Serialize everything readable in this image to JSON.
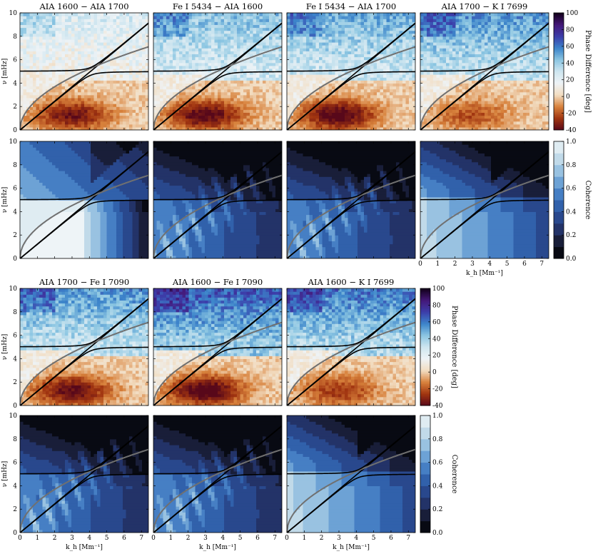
{
  "colors": {
    "phase_stops": [
      "#58081a",
      "#a03410",
      "#d8823c",
      "#f2dcc0",
      "#eef3f6",
      "#cfe6f0",
      "#8cc6e2",
      "#3c84ca",
      "#3c3eaa",
      "#451878",
      "#12001a"
    ],
    "coh_stops": [
      "#000000",
      "#181c36",
      "#273a78",
      "#2c5aa6",
      "#4a86c9",
      "#8ab9de",
      "#c4dcea",
      "#eef4f7"
    ],
    "ridge_lines": "#000000",
    "lamb_line": "#707070"
  },
  "chart_data": [
    {
      "type": "heatmap",
      "block": "top",
      "titles": [
        "AIA 1600 − AIA 1700",
        "Fe I 5434 − AIA 1600",
        "Fe I 5434 − AIA 1700",
        "AIA 1700 − K I 7699"
      ],
      "phase_rows": {
        "quantity": "Phase Difference",
        "xlim": [
          0,
          7.4
        ],
        "ylim": [
          0,
          10
        ],
        "clim": [
          -40,
          100
        ]
      },
      "coherence_rows": {
        "quantity": "Coherence",
        "xlim": [
          0,
          7.4
        ],
        "ylim": [
          0,
          10
        ],
        "clim": [
          0,
          1
        ]
      }
    },
    {
      "type": "heatmap",
      "block": "bottom",
      "titles": [
        "AIA 1700 − Fe I 7090",
        "AIA 1600 − Fe I 7090",
        "AIA 1600 − K I 7699"
      ],
      "phase_rows": {
        "quantity": "Phase Difference",
        "xlim": [
          0,
          7.4
        ],
        "ylim": [
          0,
          10
        ],
        "clim": [
          -40,
          100
        ]
      },
      "coherence_rows": {
        "quantity": "Coherence",
        "xlim": [
          0,
          7.4
        ],
        "ylim": [
          0,
          10
        ],
        "clim": [
          0,
          1
        ]
      }
    }
  ],
  "axes": {
    "ylabel": "ν [mHz]",
    "xlabel": "k_h [Mm⁻¹]",
    "xticks": [
      0,
      1,
      2,
      3,
      4,
      5,
      6,
      7
    ],
    "yticks": [
      0,
      2,
      4,
      6,
      8,
      10
    ]
  },
  "colorbars": {
    "phase": {
      "label": "Phase Difference [deg]",
      "ticks": [
        -40,
        -20,
        0,
        20,
        40,
        60,
        80,
        100
      ]
    },
    "coherence": {
      "label": "Coherence",
      "ticks": [
        0.0,
        0.2,
        0.4,
        0.6,
        0.8,
        1.0
      ]
    }
  },
  "overlay_curves": {
    "acoustic_cutoff_mHz": 5.0,
    "lamb_line_slope_mHz_per_Mm": 1.23,
    "f_mode": "gray sqrt curve reaching ~7.1 mHz at k_h = 7.4"
  }
}
